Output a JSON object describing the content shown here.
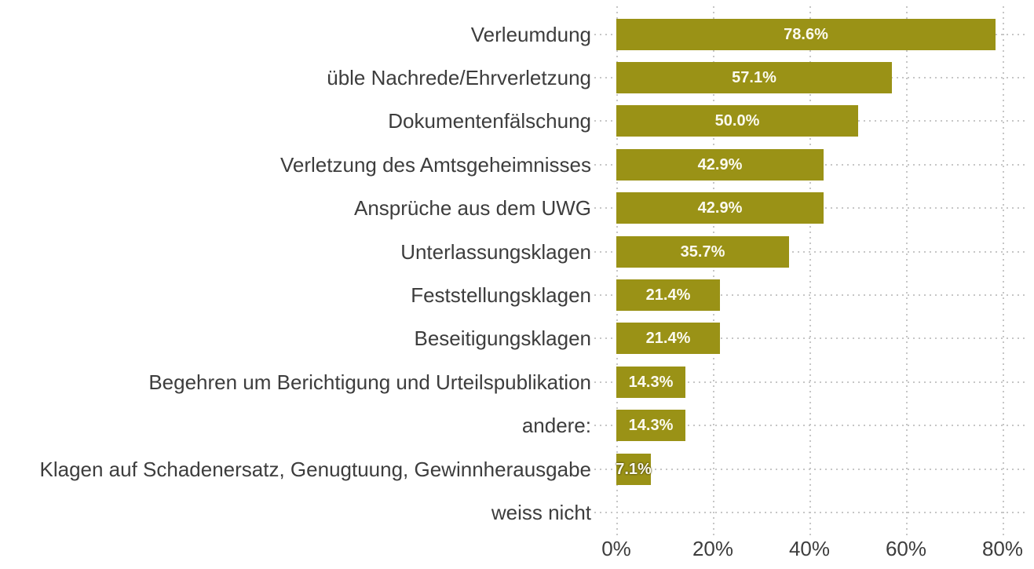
{
  "chart_data": {
    "type": "bar",
    "orientation": "horizontal",
    "title": "",
    "xlabel": "",
    "ylabel": "",
    "categories": [
      "Verleumdung",
      "üble Nachrede/Ehrverletzung",
      "Dokumentenfälschung",
      "Verletzung des Amtsgeheimnisses",
      "Ansprüche aus dem UWG",
      "Unterlassungsklagen",
      "Feststellungsklagen",
      "Beseitigungsklagen",
      "Begehren um Berichtigung und Urteilspublikation",
      "andere:",
      "Klagen auf Schadenersatz, Genugtuung, Gewinnherausgabe",
      "weiss nicht"
    ],
    "values": [
      78.6,
      57.1,
      50.0,
      42.9,
      42.9,
      35.7,
      21.4,
      21.4,
      14.3,
      14.3,
      7.1,
      0
    ],
    "value_labels": [
      "78.6%",
      "57.1%",
      "50.0%",
      "42.9%",
      "42.9%",
      "35.7%",
      "21.4%",
      "21.4%",
      "14.3%",
      "14.3%",
      "7.1%",
      ""
    ],
    "x_ticks": [
      "0%",
      "20%",
      "40%",
      "60%",
      "80%"
    ],
    "x_tick_values": [
      0,
      20,
      40,
      60,
      80
    ],
    "xlim": [
      0,
      85
    ],
    "grid": "vertical-dotted",
    "legend": "none",
    "colors": {
      "bar": "#9a9216",
      "value_text": "#fbfaef",
      "category_text": "#3d3d3d",
      "axis_text": "#3d3d3d",
      "gridline": "#c6c6c6",
      "background": "#ffffff"
    }
  }
}
